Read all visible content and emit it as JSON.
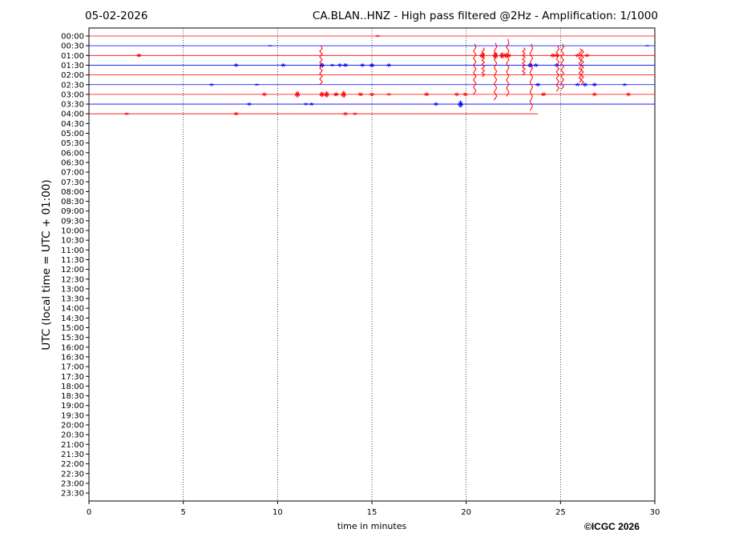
{
  "header": {
    "date": "05-02-2026",
    "title": "CA.BLAN..HNZ - High pass filtered @2Hz - Amplification: 1/1000"
  },
  "footer": {
    "copyright": "©ICGC 2026"
  },
  "colors": {
    "trace_a": "#ff0000",
    "trace_b": "#0000ff",
    "grid": "#000000",
    "axis": "#000000"
  },
  "chart_data": {
    "type": "line",
    "title": "CA.BLAN..HNZ - High pass filtered @2Hz - Amplification: 1/1000",
    "xlabel": "time in minutes",
    "ylabel": "UTC (local time = UTC + 01:00)",
    "xlim": [
      0,
      30
    ],
    "x_ticks": [
      0,
      5,
      10,
      15,
      20,
      25,
      30
    ],
    "x_tick_labels": [
      "0",
      "5",
      "10",
      "15",
      "20",
      "25",
      "30"
    ],
    "grid": "vertical dotted lines at 5-minute ticks",
    "row_labels": [
      "00:00",
      "00:30",
      "01:00",
      "01:30",
      "02:00",
      "02:30",
      "03:00",
      "03:30",
      "04:00",
      "04:30",
      "05:00",
      "05:30",
      "06:00",
      "06:30",
      "07:00",
      "07:30",
      "08:00",
      "08:30",
      "09:00",
      "09:30",
      "10:00",
      "10:30",
      "11:00",
      "11:30",
      "12:00",
      "12:30",
      "13:00",
      "13:30",
      "14:00",
      "14:30",
      "15:00",
      "15:30",
      "16:00",
      "16:30",
      "17:00",
      "17:30",
      "18:00",
      "18:30",
      "19:00",
      "19:30",
      "20:00",
      "20:30",
      "21:00",
      "21:30",
      "22:00",
      "22:30",
      "23:00",
      "23:30"
    ],
    "traces": [
      {
        "row": "00:00",
        "color": "red",
        "end_min": 30,
        "events": [
          [
            15.3,
            0.15
          ]
        ]
      },
      {
        "row": "00:30",
        "color": "blue",
        "end_min": 30,
        "events": [
          [
            9.6,
            0.1
          ],
          [
            29.6,
            0.1
          ]
        ]
      },
      {
        "row": "01:00",
        "color": "red",
        "end_min": 30,
        "events": [
          [
            2.65,
            0.4
          ],
          [
            20.85,
            0.7
          ],
          [
            21.55,
            0.9
          ],
          [
            21.9,
            0.8
          ],
          [
            22.1,
            0.6
          ],
          [
            22.25,
            0.5
          ],
          [
            24.6,
            0.5
          ],
          [
            24.8,
            0.4
          ],
          [
            25.9,
            0.3
          ],
          [
            26.4,
            0.35
          ]
        ]
      },
      {
        "row": "01:30",
        "color": "blue",
        "end_min": 30,
        "events": [
          [
            7.8,
            0.3
          ],
          [
            10.3,
            0.3
          ],
          [
            12.35,
            0.6
          ],
          [
            12.9,
            0.2
          ],
          [
            13.3,
            0.3
          ],
          [
            13.6,
            0.4
          ],
          [
            14.5,
            0.3
          ],
          [
            15.0,
            0.5
          ],
          [
            15.9,
            0.3
          ],
          [
            23.4,
            0.6
          ],
          [
            23.7,
            0.3
          ],
          [
            24.8,
            0.3
          ]
        ]
      },
      {
        "row": "02:00",
        "color": "red",
        "end_min": 30,
        "events": []
      },
      {
        "row": "02:30",
        "color": "blue",
        "end_min": 30,
        "events": [
          [
            6.5,
            0.2
          ],
          [
            8.9,
            0.15
          ],
          [
            23.8,
            0.3
          ],
          [
            25.9,
            0.25
          ],
          [
            26.3,
            0.3
          ],
          [
            26.8,
            0.3
          ],
          [
            28.4,
            0.2
          ]
        ]
      },
      {
        "row": "03:00",
        "color": "red",
        "end_min": 30,
        "events": [
          [
            9.3,
            0.3
          ],
          [
            11.05,
            0.8
          ],
          [
            12.35,
            0.7
          ],
          [
            12.6,
            0.8
          ],
          [
            13.1,
            0.5
          ],
          [
            13.5,
            0.9
          ],
          [
            14.4,
            0.4
          ],
          [
            15.0,
            0.3
          ],
          [
            15.9,
            0.2
          ],
          [
            17.9,
            0.4
          ],
          [
            19.5,
            0.3
          ],
          [
            19.95,
            0.3
          ],
          [
            24.1,
            0.4
          ],
          [
            26.8,
            0.3
          ],
          [
            28.6,
            0.3
          ]
        ]
      },
      {
        "row": "03:30",
        "color": "blue",
        "end_min": 30,
        "events": [
          [
            8.5,
            0.25
          ],
          [
            11.5,
            0.2
          ],
          [
            11.8,
            0.25
          ],
          [
            18.4,
            0.3
          ],
          [
            19.7,
            0.9
          ]
        ]
      },
      {
        "row": "04:00",
        "color": "red",
        "end_min": 23.8,
        "events": [
          [
            2.0,
            0.2
          ],
          [
            7.8,
            0.35
          ],
          [
            13.6,
            0.3
          ],
          [
            14.1,
            0.2
          ]
        ]
      }
    ],
    "big_events": [
      {
        "min": 12.3,
        "up": 1.0,
        "down": 3.0
      },
      {
        "min": 20.45,
        "up": 1.2,
        "down": 4.0
      },
      {
        "min": 20.9,
        "up": 0.8,
        "down": 2.2
      },
      {
        "min": 21.55,
        "up": 1.3,
        "down": 4.6
      },
      {
        "min": 22.2,
        "up": 1.7,
        "down": 4.2
      },
      {
        "min": 23.05,
        "up": 0.8,
        "down": 2.0
      },
      {
        "min": 23.45,
        "up": 1.2,
        "down": 5.7
      },
      {
        "min": 24.85,
        "up": 1.0,
        "down": 3.7
      },
      {
        "min": 25.1,
        "up": 1.2,
        "down": 3.5
      },
      {
        "min": 26.05,
        "up": 0.7,
        "down": 2.8
      },
      {
        "min": 26.15,
        "up": 0.6,
        "down": 3.0
      }
    ]
  }
}
